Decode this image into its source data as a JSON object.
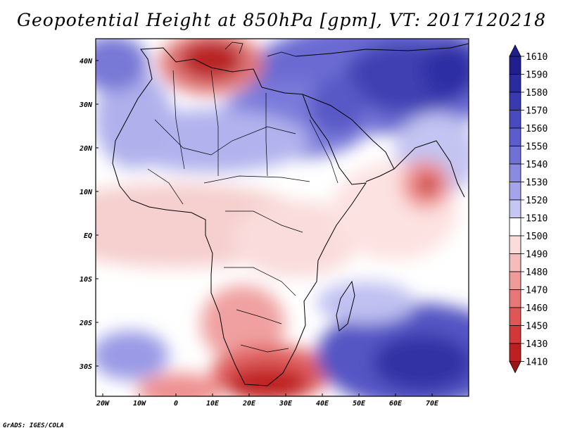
{
  "title": "Geopotential Height at 850hPa [gpm], VT: 2017120218",
  "footer": "GrADS: IGES/COLA",
  "chart_data": {
    "type": "heatmap",
    "variable": "Geopotential Height at 850hPa",
    "units": "gpm",
    "valid_time": "2017120218",
    "x_ticks": [
      "20W",
      "10W",
      "0",
      "10E",
      "20E",
      "30E",
      "40E",
      "50E",
      "60E",
      "70E"
    ],
    "y_ticks": [
      "40N",
      "30N",
      "20N",
      "10N",
      "EQ",
      "10S",
      "20S",
      "30S"
    ],
    "colorbar": {
      "levels": [
        "1610",
        "1590",
        "1580",
        "1570",
        "1560",
        "1550",
        "1540",
        "1530",
        "1520",
        "1510",
        "1500",
        "1490",
        "1480",
        "1470",
        "1460",
        "1450",
        "1430",
        "1410"
      ],
      "colors": [
        "#1f1f8e",
        "#2b2ba0",
        "#3a3ab0",
        "#4a4ac0",
        "#5c5ccc",
        "#7070d6",
        "#8a8ae0",
        "#a4a4ea",
        "#c6c6f4",
        "#ffffff",
        "#fbdcdc",
        "#f6bcbc",
        "#f09a9a",
        "#e87878",
        "#df5656",
        "#d23838",
        "#bd2020",
        "#9e1414"
      ]
    }
  }
}
